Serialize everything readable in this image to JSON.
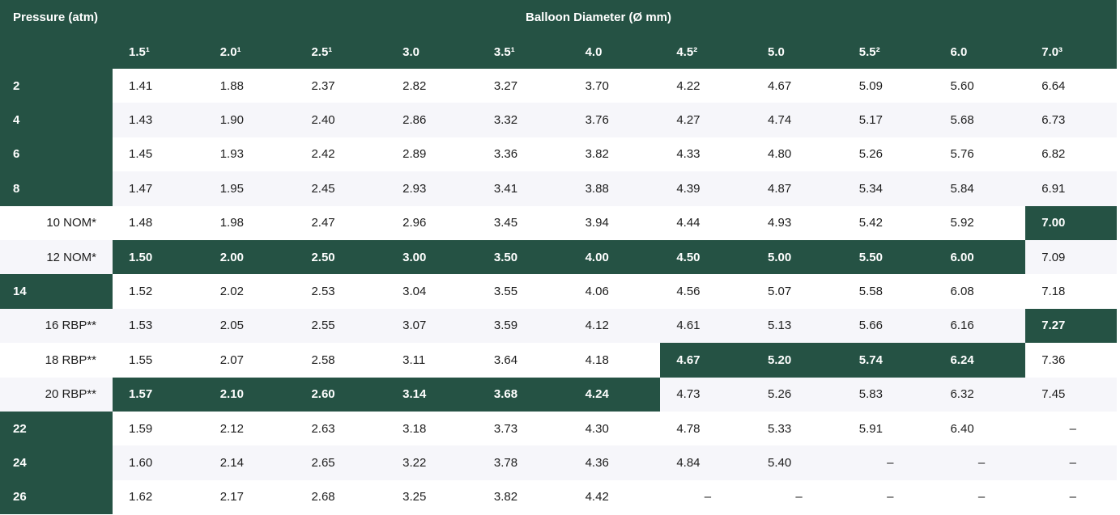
{
  "table": {
    "corner": "Pressure (atm)",
    "group_header": "Balloon Diameter (Ø mm)",
    "columns": [
      "1.5¹",
      "2.0¹",
      "2.5¹",
      "3.0",
      "3.5¹",
      "4.0",
      "4.5²",
      "5.0",
      "5.5²",
      "6.0",
      "7.0³"
    ],
    "rows": [
      {
        "pressure": "2",
        "values": [
          "1.41",
          "1.88",
          "2.37",
          "2.82",
          "3.27",
          "3.70",
          "4.22",
          "4.67",
          "5.09",
          "5.60",
          "6.64"
        ]
      },
      {
        "pressure": "4",
        "values": [
          "1.43",
          "1.90",
          "2.40",
          "2.86",
          "3.32",
          "3.76",
          "4.27",
          "4.74",
          "5.17",
          "5.68",
          "6.73"
        ]
      },
      {
        "pressure": "6",
        "values": [
          "1.45",
          "1.93",
          "2.42",
          "2.89",
          "3.36",
          "3.82",
          "4.33",
          "4.80",
          "5.26",
          "5.76",
          "6.82"
        ]
      },
      {
        "pressure": "8",
        "values": [
          "1.47",
          "1.95",
          "2.45",
          "2.93",
          "3.41",
          "3.88",
          "4.39",
          "4.87",
          "5.34",
          "5.84",
          "6.91"
        ]
      },
      {
        "pressure": "10 NOM*",
        "values": [
          "1.48",
          "1.98",
          "2.47",
          "2.96",
          "3.45",
          "3.94",
          "4.44",
          "4.93",
          "5.42",
          "5.92",
          "7.00"
        ]
      },
      {
        "pressure": "12 NOM*",
        "values": [
          "1.50",
          "2.00",
          "2.50",
          "3.00",
          "3.50",
          "4.00",
          "4.50",
          "5.00",
          "5.50",
          "6.00",
          "7.09"
        ]
      },
      {
        "pressure": "14",
        "values": [
          "1.52",
          "2.02",
          "2.53",
          "3.04",
          "3.55",
          "4.06",
          "4.56",
          "5.07",
          "5.58",
          "6.08",
          "7.18"
        ]
      },
      {
        "pressure": "16 RBP**",
        "values": [
          "1.53",
          "2.05",
          "2.55",
          "3.07",
          "3.59",
          "4.12",
          "4.61",
          "5.13",
          "5.66",
          "6.16",
          "7.27"
        ]
      },
      {
        "pressure": "18 RBP**",
        "values": [
          "1.55",
          "2.07",
          "2.58",
          "3.11",
          "3.64",
          "4.18",
          "4.67",
          "5.20",
          "5.74",
          "6.24",
          "7.36"
        ]
      },
      {
        "pressure": "20 RBP**",
        "values": [
          "1.57",
          "2.10",
          "2.60",
          "3.14",
          "3.68",
          "4.24",
          "4.73",
          "5.26",
          "5.83",
          "6.32",
          "7.45"
        ]
      },
      {
        "pressure": "22",
        "values": [
          "1.59",
          "2.12",
          "2.63",
          "3.18",
          "3.73",
          "4.30",
          "4.78",
          "5.33",
          "5.91",
          "6.40",
          "–"
        ]
      },
      {
        "pressure": "24",
        "values": [
          "1.60",
          "2.14",
          "2.65",
          "3.22",
          "3.78",
          "4.36",
          "4.84",
          "5.40",
          "–",
          "–",
          "–"
        ]
      },
      {
        "pressure": "26",
        "values": [
          "1.62",
          "2.17",
          "2.68",
          "3.25",
          "3.82",
          "4.42",
          "–",
          "–",
          "–",
          "–",
          "–"
        ]
      }
    ]
  }
}
